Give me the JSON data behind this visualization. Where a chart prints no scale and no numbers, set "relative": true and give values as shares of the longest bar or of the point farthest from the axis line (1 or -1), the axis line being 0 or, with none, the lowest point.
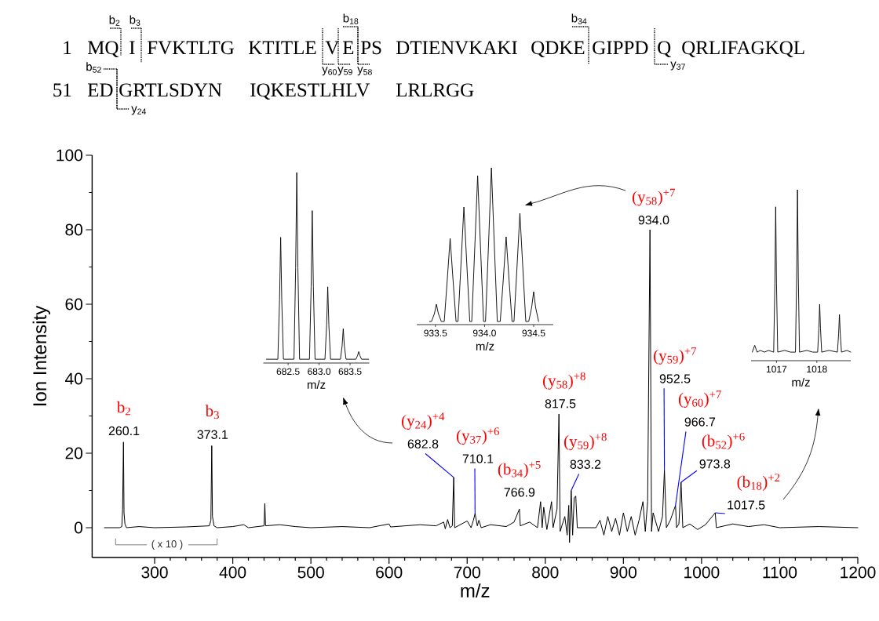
{
  "chart_data": [
    {
      "type": "other",
      "annotations": [
        "1",
        "MQ",
        "I",
        "FVKTLTG",
        "KTITLE",
        "V",
        "E",
        "PS",
        "DTIENVKAKI",
        "QDKE",
        "GIPPD",
        "Q",
        "QRLIFAGKQL",
        "51",
        "ED",
        "GRTLSDYN",
        "IQKESTLHLV",
        "LRLRGG",
        "b$_{2}$",
        "b$_{3}$",
        "b$_{18}$",
        "b$_{34}$",
        "b$_{52}$",
        "y$_{60}$",
        "y$_{59}$",
        "y$_{58}$",
        "y$_{37}$",
        "y$_{24}$"
      ]
    },
    {
      "type": "line",
      "xlabel": "m/z",
      "ylabel": "Ion Intensity",
      "color": "#000000",
      "xlim": [
        220,
        1200
      ],
      "ylim": [
        -8,
        100
      ],
      "xticks": [
        300,
        400,
        500,
        600,
        700,
        800,
        900,
        1000,
        1100,
        1200
      ],
      "yticks": [
        0,
        20,
        40,
        60,
        80,
        100
      ],
      "x": [
        235.7,
        255,
        258,
        259,
        260.1,
        260.8,
        262,
        264,
        280,
        300,
        340,
        370,
        372,
        373.1,
        374,
        376,
        380,
        400,
        414,
        420,
        440,
        441,
        442,
        460,
        480,
        500,
        540,
        575,
        600,
        602,
        640,
        660,
        670,
        672,
        675,
        678,
        681,
        682.8,
        684,
        700,
        705,
        708,
        710.1,
        713,
        715,
        718,
        730,
        750,
        760,
        766.9,
        768,
        780,
        790,
        794,
        796,
        798,
        802,
        808,
        810,
        815,
        817.5,
        819,
        825,
        828,
        830,
        831,
        833.2,
        835,
        837,
        839,
        841,
        842,
        865,
        870,
        875,
        880,
        885,
        890,
        895,
        900,
        905,
        910,
        915,
        920,
        925,
        928,
        931,
        934.0,
        936,
        938,
        945,
        950,
        952.5,
        955,
        960,
        966.7,
        968,
        971,
        973.8,
        976,
        985,
        995,
        1005,
        1017.5,
        1019,
        1040,
        1060,
        1080,
        1100,
        1150,
        1200
      ],
      "values": [
        0,
        0,
        0.3,
        5,
        23,
        4,
        1,
        0,
        0.3,
        0,
        0.2,
        0.5,
        2,
        22,
        3,
        0.5,
        0,
        0.3,
        0.8,
        0,
        0.5,
        6.5,
        0.5,
        0.8,
        0.3,
        0,
        0.3,
        0,
        1,
        0.2,
        0.8,
        0.5,
        1.5,
        -0.3,
        2.2,
        0,
        0.5,
        13.5,
        0,
        1.8,
        0,
        2,
        3.8,
        0.5,
        2,
        0,
        0.8,
        0.3,
        1.5,
        5,
        0.5,
        1.5,
        0,
        7,
        0,
        5.5,
        -0.5,
        7,
        0,
        5,
        30.5,
        -1,
        3,
        -2,
        6,
        -4,
        10,
        -2,
        8,
        8.5,
        0,
        0,
        0,
        2,
        -2,
        3,
        -1,
        2.5,
        -2,
        4,
        -1,
        3,
        -2,
        2,
        7,
        -1,
        7,
        80,
        -1,
        4,
        -1,
        3,
        15.5,
        0,
        2,
        6,
        0,
        1,
        12.2,
        0,
        1,
        -0.5,
        0.8,
        4,
        0,
        1,
        0.3,
        0.8,
        0,
        0.3,
        0
      ],
      "annotations": [
        "b$_{2}$",
        {
          "text": "260.1",
          "x": 260.1,
          "y": 23
        },
        "b$_{3}$",
        {
          "text": "373.1",
          "x": 373.1,
          "y": 22
        },
        "(y$_{24}$)$^{+4}$",
        {
          "text": "682.8",
          "x": 682.8,
          "y": 13.5
        },
        "(y$_{37}$)$^{+6}$",
        {
          "text": "710.1",
          "x": 710.1,
          "y": 3.8
        },
        "(b$_{34}$)$^{+5}$",
        {
          "text": "766.9",
          "x": 766.9,
          "y": 5
        },
        "(y$_{58}$)$^{+8}$",
        {
          "text": "817.5",
          "x": 817.5,
          "y": 30.5
        },
        "(y$_{59}$)$^{+8}$",
        {
          "text": "833.2",
          "x": 833.2,
          "y": 10
        },
        "(y$_{58}$)$^{+7}$",
        {
          "text": "934.0",
          "x": 934.0,
          "y": 80
        },
        "(y$_{59}$)$^{+7}$",
        {
          "text": "952.5",
          "x": 952.5,
          "y": 15.5
        },
        "(y$_{60}$)$^{+7}$",
        {
          "text": "966.7",
          "x": 966.7,
          "y": 6
        },
        "(b$_{52}$)$^{+6}$",
        {
          "text": "973.8",
          "x": 973.8,
          "y": 12.2
        },
        "(b$_{18}$)$^{+2}$",
        {
          "text": "1017.5",
          "x": 1017.5,
          "y": 4
        },
        "( x 10 )"
      ]
    },
    {
      "type": "line",
      "relative": true,
      "xlabel": "m/z",
      "color": "#000000",
      "xlim": [
        682.1,
        683.81
      ],
      "xticks": [
        682.5,
        {
          "value": 683,
          "label": "683.0"
        },
        683.5
      ],
      "x": [
        682.15,
        682.335,
        682.362,
        682.38,
        682.398,
        682.425,
        682.595,
        682.622,
        682.64,
        682.658,
        682.685,
        682.845,
        682.872,
        682.89,
        682.908,
        682.935,
        683.095,
        683.122,
        683.14,
        683.158,
        683.185,
        683.345,
        683.372,
        683.39,
        683.408,
        683.435,
        683.595,
        683.622,
        683.64,
        683.658,
        683.685,
        683.8
      ],
      "values": [
        0.02,
        0.02,
        0.33,
        0.66,
        0.33,
        0.02,
        0.02,
        0.5,
        1,
        0.5,
        0.02,
        0.02,
        0.4,
        0.8,
        0.4,
        0.02,
        0.02,
        0.2,
        0.4,
        0.2,
        0.02,
        0.02,
        0.09,
        0.18,
        0.09,
        0.02,
        0.02,
        0.04,
        0.06,
        0.04,
        0.02,
        0.02
      ]
    },
    {
      "type": "line",
      "relative": true,
      "xlabel": "m/z",
      "color": "#000000",
      "xlim": [
        933.31,
        934.7
      ],
      "xticks": [
        933.5,
        {
          "value": 934,
          "label": "934.0"
        },
        934.5
      ],
      "x": [
        933.44,
        933.46,
        933.49,
        933.51,
        933.53,
        933.56,
        933.59,
        933.62,
        933.65,
        933.68,
        933.71,
        933.73,
        933.76,
        933.79,
        933.82,
        933.85,
        933.87,
        933.9,
        933.93,
        933.96,
        933.99,
        934.01,
        934.04,
        934.07,
        934.1,
        934.13,
        934.16,
        934.19,
        934.22,
        934.25,
        934.28,
        934.3,
        934.33,
        934.36,
        934.39,
        934.42,
        934.45,
        934.48,
        934.5,
        934.52,
        934.55
      ],
      "values": [
        0.02,
        0.02,
        0.07,
        0.13,
        0.07,
        0.02,
        0.02,
        0.28,
        0.55,
        0.28,
        0.02,
        0.02,
        0.38,
        0.75,
        0.38,
        0.02,
        0.02,
        0.48,
        0.95,
        0.48,
        0.02,
        0.02,
        0.5,
        1,
        0.5,
        0.02,
        0.02,
        0.28,
        0.56,
        0.28,
        0.02,
        0.02,
        0.36,
        0.71,
        0.36,
        0.02,
        0.02,
        0.11,
        0.21,
        0.11,
        0.02
      ]
    },
    {
      "type": "line",
      "relative": true,
      "xlabel": "m/z",
      "color": "#000000",
      "xlim": [
        1016.37,
        1018.84
      ],
      "xticks": [
        1017,
        1018
      ],
      "x": [
        1016.4,
        1016.46,
        1016.52,
        1016.6,
        1016.7,
        1016.8,
        1016.93,
        1016.96,
        1016.98,
        1017.0,
        1017.03,
        1017.2,
        1017.35,
        1017.47,
        1017.5,
        1017.52,
        1017.54,
        1017.57,
        1017.75,
        1017.9,
        1018.02,
        1018.05,
        1018.07,
        1018.09,
        1018.12,
        1018.3,
        1018.51,
        1018.54,
        1018.56,
        1018.58,
        1018.61,
        1018.75,
        1018.84
      ],
      "values": [
        0.05,
        0.09,
        0.05,
        0.06,
        0.05,
        0.06,
        0.05,
        0.45,
        0.9,
        0.45,
        0.05,
        0.06,
        0.05,
        0.05,
        0.5,
        1,
        0.5,
        0.05,
        0.06,
        0.05,
        0.05,
        0.19,
        0.33,
        0.19,
        0.05,
        0.06,
        0.05,
        0.16,
        0.27,
        0.16,
        0.05,
        0.06,
        0.05
      ]
    }
  ]
}
